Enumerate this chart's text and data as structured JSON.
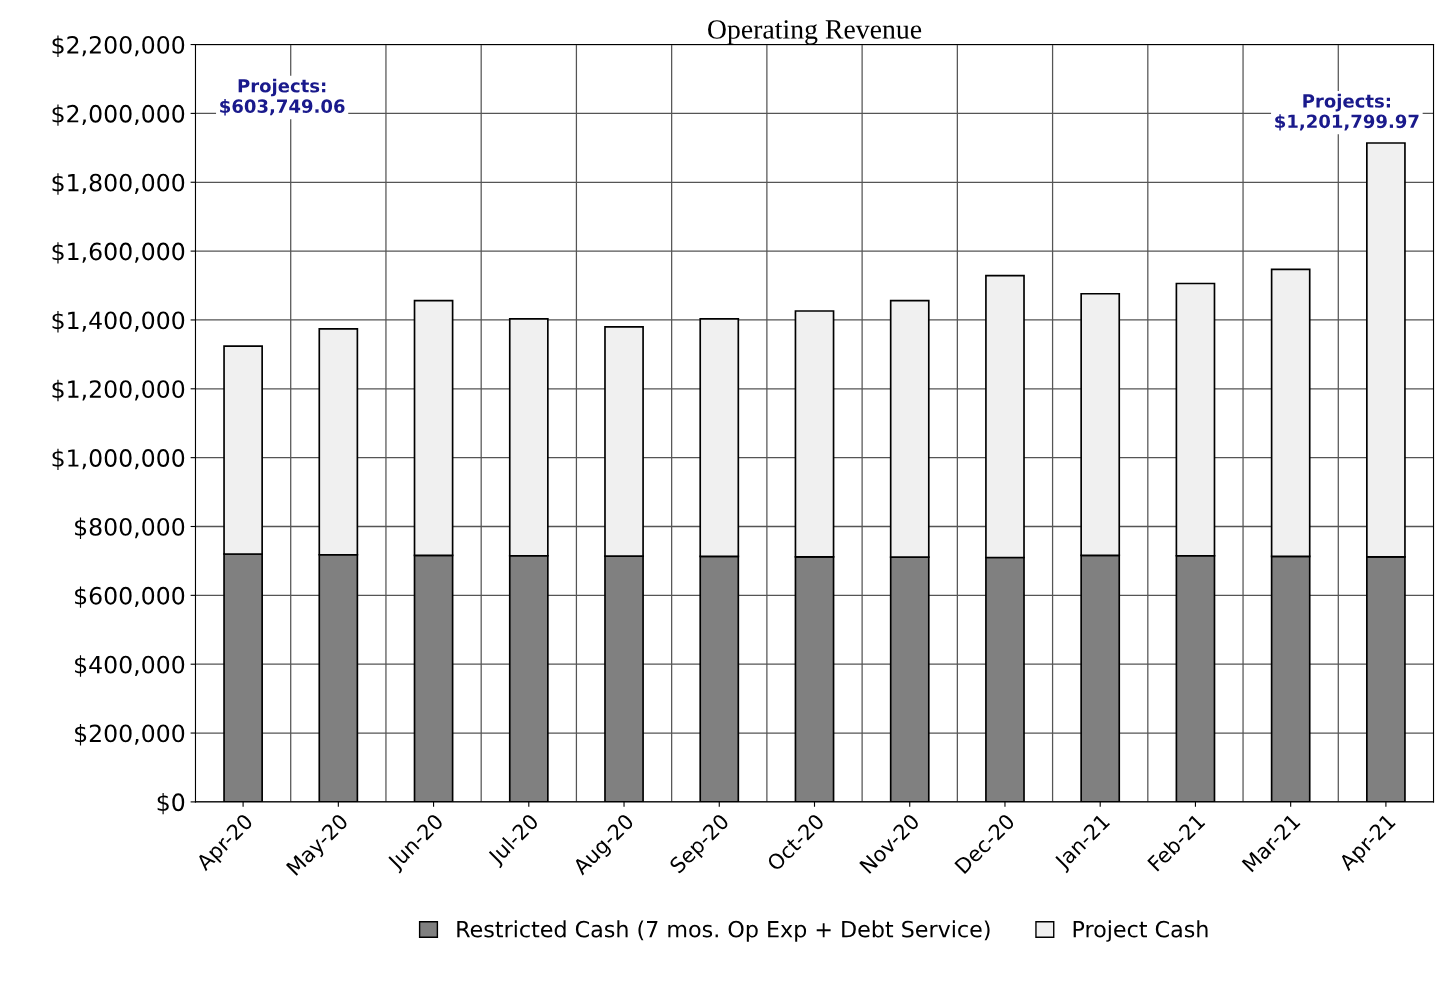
{
  "chart_data": {
    "type": "bar",
    "title": "Operating Revenue",
    "stacked": true,
    "categories": [
      "Apr-20",
      "May-20",
      "Jun-20",
      "Jul-20",
      "Aug-20",
      "Sep-20",
      "Oct-20",
      "Nov-20",
      "Dec-20",
      "Jan-21",
      "Feb-21",
      "Mar-21",
      "Apr-21"
    ],
    "series": [
      {
        "name": "Restricted Cash (7 mos. Op Exp + Debt Service)",
        "color": "#808080",
        "values": [
          720000,
          718000,
          716000,
          715000,
          714000,
          713000,
          712000,
          711000,
          710000,
          716000,
          715000,
          713000,
          712000
        ]
      },
      {
        "name": "Project Cash",
        "color": "#f0f0f0",
        "values": [
          604000,
          656000,
          740000,
          688000,
          666000,
          690000,
          714000,
          745000,
          819000,
          760000,
          791000,
          834000,
          1202000
        ]
      }
    ],
    "ylim": [
      0,
      2200000
    ],
    "yticks": [
      {
        "value": 0,
        "label": "$0"
      },
      {
        "value": 200000,
        "label": "$200,000"
      },
      {
        "value": 400000,
        "label": "$400,000"
      },
      {
        "value": 600000,
        "label": "$600,000"
      },
      {
        "value": 800000,
        "label": "$800,000"
      },
      {
        "value": 1000000,
        "label": "$1,000,000"
      },
      {
        "value": 1200000,
        "label": "$1,200,000"
      },
      {
        "value": 1400000,
        "label": "$1,400,000"
      },
      {
        "value": 1600000,
        "label": "$1,600,000"
      },
      {
        "value": 1800000,
        "label": "$1,800,000"
      },
      {
        "value": 2000000,
        "label": "$2,000,000"
      },
      {
        "value": 2200000,
        "label": "$2,200,000"
      }
    ],
    "annotations": [
      "Projects:\n$603,749.06",
      "Projects:\n$1,201,799.97"
    ],
    "grid": true,
    "legend": "bottom"
  }
}
